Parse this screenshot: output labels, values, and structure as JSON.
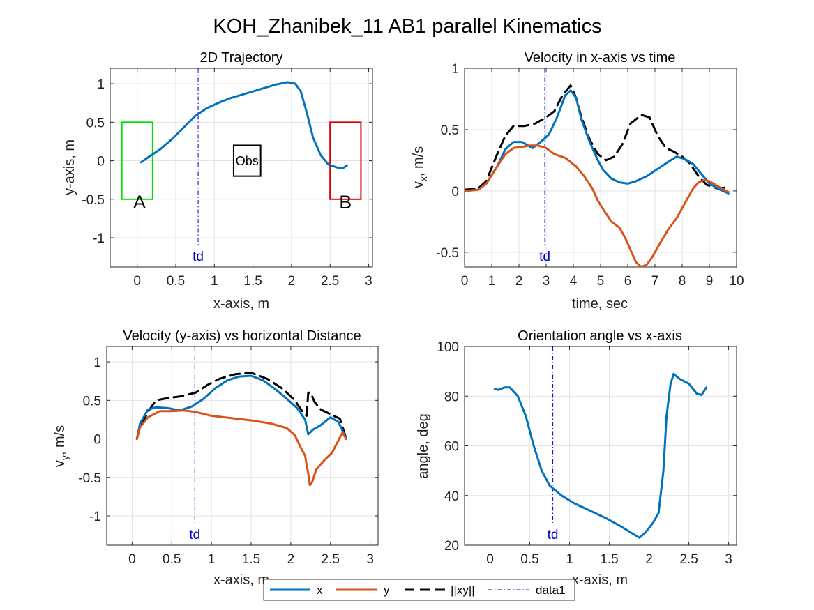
{
  "figure": {
    "title": "KOH_Zhanibek_11    AB1    parallel    Kinematics"
  },
  "colors": {
    "x": "#0072BD",
    "y": "#D95319",
    "xy": "#000000",
    "data1": "#0000CC",
    "box_A": "#00DD00",
    "box_B": "#DD0000"
  },
  "legend": {
    "entries": [
      "x",
      "y",
      "||xy||",
      "data1"
    ],
    "placement": "bottom-center"
  },
  "chart_data": [
    {
      "id": "traj",
      "type": "line",
      "title": "2D Trajectory",
      "xlabel": "x-axis, m",
      "ylabel": "y-axis, m",
      "xlim": [
        -0.35,
        3.05
      ],
      "ylim": [
        -1.38,
        1.2
      ],
      "xticks": [
        0,
        0.5,
        1,
        1.5,
        2,
        2.5,
        3
      ],
      "yticks": [
        -1,
        -0.5,
        0,
        0.5,
        1
      ],
      "grid": true,
      "td_x": 0.79,
      "td_label": "td",
      "annotations": {
        "A": "A",
        "B": "B",
        "Obs": "Obs"
      },
      "boxes": [
        {
          "name": "A",
          "x": [
            -0.2,
            0.2
          ],
          "y": [
            -0.5,
            0.5
          ],
          "color": "box_A"
        },
        {
          "name": "B",
          "x": [
            2.5,
            2.9
          ],
          "y": [
            -0.5,
            0.5
          ],
          "color": "box_B"
        },
        {
          "name": "Obs",
          "x": [
            1.25,
            1.6
          ],
          "y": [
            -0.2,
            0.2
          ],
          "color": "xy"
        }
      ],
      "series": [
        {
          "key": "x",
          "points": [
            [
              0.05,
              -0.02
            ],
            [
              0.15,
              0.05
            ],
            [
              0.3,
              0.15
            ],
            [
              0.45,
              0.28
            ],
            [
              0.6,
              0.43
            ],
            [
              0.75,
              0.58
            ],
            [
              0.9,
              0.68
            ],
            [
              1.05,
              0.75
            ],
            [
              1.2,
              0.81
            ],
            [
              1.4,
              0.87
            ],
            [
              1.6,
              0.93
            ],
            [
              1.8,
              0.99
            ],
            [
              1.95,
              1.02
            ],
            [
              2.05,
              1.0
            ],
            [
              2.12,
              0.9
            ],
            [
              2.2,
              0.62
            ],
            [
              2.28,
              0.3
            ],
            [
              2.38,
              0.07
            ],
            [
              2.48,
              -0.05
            ],
            [
              2.6,
              -0.09
            ],
            [
              2.66,
              -0.1
            ],
            [
              2.72,
              -0.06
            ]
          ]
        }
      ]
    },
    {
      "id": "vx",
      "type": "line",
      "title": "Velocity in x-axis vs time",
      "xlabel": "time, sec",
      "ylabel": "v",
      "ylabel_sub": "x",
      "ylabel_suffix": ", m/s",
      "xlim": [
        0,
        10
      ],
      "ylim": [
        -0.62,
        1.0
      ],
      "xticks": [
        0,
        1,
        2,
        3,
        4,
        5,
        6,
        7,
        8,
        9,
        10
      ],
      "yticks": [
        -0.5,
        0,
        0.5,
        1
      ],
      "grid": true,
      "td_x": 2.95,
      "td_label": "td",
      "series": [
        {
          "key": "xy",
          "points": [
            [
              0,
              0.01
            ],
            [
              0.5,
              0.02
            ],
            [
              0.8,
              0.08
            ],
            [
              1.2,
              0.3
            ],
            [
              1.5,
              0.45
            ],
            [
              1.8,
              0.53
            ],
            [
              2.2,
              0.53
            ],
            [
              2.6,
              0.55
            ],
            [
              3.0,
              0.6
            ],
            [
              3.3,
              0.65
            ],
            [
              3.6,
              0.78
            ],
            [
              3.9,
              0.86
            ],
            [
              4.1,
              0.76
            ],
            [
              4.3,
              0.6
            ],
            [
              4.6,
              0.42
            ],
            [
              4.9,
              0.3
            ],
            [
              5.2,
              0.25
            ],
            [
              5.5,
              0.28
            ],
            [
              5.8,
              0.38
            ],
            [
              6.1,
              0.55
            ],
            [
              6.5,
              0.62
            ],
            [
              6.8,
              0.6
            ],
            [
              7.1,
              0.45
            ],
            [
              7.4,
              0.35
            ],
            [
              7.7,
              0.32
            ],
            [
              8.0,
              0.28
            ],
            [
              8.3,
              0.22
            ],
            [
              8.6,
              0.12
            ],
            [
              8.9,
              0.05
            ],
            [
              9.3,
              0.02
            ],
            [
              9.7,
              0.03
            ]
          ]
        },
        {
          "key": "x",
          "points": [
            [
              0,
              0.0
            ],
            [
              0.5,
              0.01
            ],
            [
              0.8,
              0.06
            ],
            [
              1.2,
              0.2
            ],
            [
              1.5,
              0.34
            ],
            [
              1.8,
              0.4
            ],
            [
              2.1,
              0.4
            ],
            [
              2.5,
              0.35
            ],
            [
              2.8,
              0.4
            ],
            [
              3.1,
              0.46
            ],
            [
              3.4,
              0.6
            ],
            [
              3.7,
              0.78
            ],
            [
              3.9,
              0.82
            ],
            [
              4.1,
              0.76
            ],
            [
              4.3,
              0.58
            ],
            [
              4.6,
              0.4
            ],
            [
              4.9,
              0.25
            ],
            [
              5.1,
              0.17
            ],
            [
              5.4,
              0.1
            ],
            [
              5.7,
              0.07
            ],
            [
              6.0,
              0.06
            ],
            [
              6.3,
              0.08
            ],
            [
              6.7,
              0.12
            ],
            [
              7.1,
              0.18
            ],
            [
              7.5,
              0.24
            ],
            [
              7.8,
              0.28
            ],
            [
              8.1,
              0.26
            ],
            [
              8.4,
              0.22
            ],
            [
              8.7,
              0.14
            ],
            [
              9.0,
              0.06
            ],
            [
              9.4,
              0.01
            ],
            [
              9.7,
              -0.02
            ]
          ]
        },
        {
          "key": "y",
          "points": [
            [
              0,
              0.0
            ],
            [
              0.5,
              0.01
            ],
            [
              0.8,
              0.06
            ],
            [
              1.2,
              0.2
            ],
            [
              1.5,
              0.3
            ],
            [
              1.8,
              0.35
            ],
            [
              2.1,
              0.36
            ],
            [
              2.4,
              0.37
            ],
            [
              2.7,
              0.37
            ],
            [
              3.0,
              0.35
            ],
            [
              3.3,
              0.3
            ],
            [
              3.7,
              0.27
            ],
            [
              4.1,
              0.2
            ],
            [
              4.4,
              0.12
            ],
            [
              4.7,
              0.02
            ],
            [
              4.9,
              -0.08
            ],
            [
              5.1,
              -0.15
            ],
            [
              5.4,
              -0.25
            ],
            [
              5.7,
              -0.3
            ],
            [
              5.9,
              -0.38
            ],
            [
              6.1,
              -0.48
            ],
            [
              6.3,
              -0.58
            ],
            [
              6.5,
              -0.62
            ],
            [
              6.7,
              -0.6
            ],
            [
              6.9,
              -0.54
            ],
            [
              7.2,
              -0.42
            ],
            [
              7.5,
              -0.31
            ],
            [
              7.8,
              -0.22
            ],
            [
              8.1,
              -0.1
            ],
            [
              8.4,
              0.02
            ],
            [
              8.6,
              0.07
            ],
            [
              8.8,
              0.09
            ],
            [
              9.0,
              0.08
            ],
            [
              9.3,
              0.04
            ],
            [
              9.7,
              -0.01
            ]
          ]
        }
      ]
    },
    {
      "id": "vy",
      "type": "line",
      "title": "Velocity (y-axis) vs horizontal Distance",
      "xlabel": "x-axis, m",
      "ylabel": "v",
      "ylabel_sub": "y",
      "ylabel_suffix": ", m/s",
      "xlim": [
        -0.32,
        3.1
      ],
      "ylim": [
        -1.38,
        1.2
      ],
      "xticks": [
        0,
        0.5,
        1,
        1.5,
        2,
        2.5,
        3
      ],
      "yticks": [
        -1,
        -0.5,
        0,
        0.5,
        1
      ],
      "grid": true,
      "td_x": 0.79,
      "td_label": "td",
      "series": [
        {
          "key": "xy",
          "points": [
            [
              0.06,
              0.0
            ],
            [
              0.1,
              0.15
            ],
            [
              0.2,
              0.35
            ],
            [
              0.3,
              0.5
            ],
            [
              0.45,
              0.53
            ],
            [
              0.6,
              0.55
            ],
            [
              0.8,
              0.6
            ],
            [
              0.95,
              0.7
            ],
            [
              1.1,
              0.78
            ],
            [
              1.3,
              0.84
            ],
            [
              1.5,
              0.86
            ],
            [
              1.7,
              0.78
            ],
            [
              1.9,
              0.65
            ],
            [
              2.05,
              0.5
            ],
            [
              2.15,
              0.35
            ],
            [
              2.2,
              0.3
            ],
            [
              2.22,
              0.6
            ],
            [
              2.25,
              0.6
            ],
            [
              2.3,
              0.48
            ],
            [
              2.38,
              0.38
            ],
            [
              2.5,
              0.32
            ],
            [
              2.62,
              0.26
            ],
            [
              2.7,
              0.0
            ]
          ]
        },
        {
          "key": "x",
          "points": [
            [
              0.06,
              0.0
            ],
            [
              0.1,
              0.2
            ],
            [
              0.2,
              0.38
            ],
            [
              0.3,
              0.41
            ],
            [
              0.45,
              0.4
            ],
            [
              0.6,
              0.37
            ],
            [
              0.75,
              0.42
            ],
            [
              0.9,
              0.52
            ],
            [
              1.05,
              0.66
            ],
            [
              1.2,
              0.76
            ],
            [
              1.35,
              0.81
            ],
            [
              1.5,
              0.82
            ],
            [
              1.65,
              0.76
            ],
            [
              1.8,
              0.65
            ],
            [
              1.95,
              0.52
            ],
            [
              2.08,
              0.4
            ],
            [
              2.18,
              0.25
            ],
            [
              2.22,
              0.06
            ],
            [
              2.28,
              0.12
            ],
            [
              2.38,
              0.18
            ],
            [
              2.5,
              0.28
            ],
            [
              2.6,
              0.22
            ],
            [
              2.7,
              0.0
            ]
          ]
        },
        {
          "key": "y",
          "points": [
            [
              0.06,
              0.0
            ],
            [
              0.1,
              0.15
            ],
            [
              0.2,
              0.28
            ],
            [
              0.35,
              0.36
            ],
            [
              0.5,
              0.36
            ],
            [
              0.65,
              0.37
            ],
            [
              0.8,
              0.35
            ],
            [
              1.0,
              0.3
            ],
            [
              1.25,
              0.27
            ],
            [
              1.5,
              0.24
            ],
            [
              1.75,
              0.2
            ],
            [
              1.95,
              0.14
            ],
            [
              2.05,
              0.05
            ],
            [
              2.12,
              -0.1
            ],
            [
              2.18,
              -0.22
            ],
            [
              2.22,
              -0.45
            ],
            [
              2.24,
              -0.6
            ],
            [
              2.27,
              -0.56
            ],
            [
              2.32,
              -0.4
            ],
            [
              2.42,
              -0.28
            ],
            [
              2.52,
              -0.18
            ],
            [
              2.6,
              -0.02
            ],
            [
              2.65,
              0.08
            ],
            [
              2.7,
              0.0
            ]
          ]
        }
      ]
    },
    {
      "id": "angle",
      "type": "line",
      "title": "Orientation angle vs x-axis",
      "xlabel": "x-axis, m",
      "ylabel": "angle, deg",
      "xlim": [
        -0.32,
        3.1
      ],
      "ylim": [
        20,
        100
      ],
      "xticks": [
        0,
        0.5,
        1,
        1.5,
        2,
        2.5,
        3
      ],
      "yticks": [
        20,
        40,
        60,
        80,
        100
      ],
      "grid": true,
      "td_x": 0.79,
      "td_label": "td",
      "series": [
        {
          "key": "x",
          "points": [
            [
              0.06,
              83
            ],
            [
              0.1,
              82.5
            ],
            [
              0.18,
              83.5
            ],
            [
              0.25,
              83.5
            ],
            [
              0.35,
              80
            ],
            [
              0.45,
              72
            ],
            [
              0.55,
              60
            ],
            [
              0.65,
              50
            ],
            [
              0.75,
              44
            ],
            [
              0.9,
              40
            ],
            [
              1.05,
              37
            ],
            [
              1.25,
              34
            ],
            [
              1.45,
              31
            ],
            [
              1.65,
              27.5
            ],
            [
              1.8,
              24.5
            ],
            [
              1.88,
              23
            ],
            [
              1.95,
              25
            ],
            [
              2.05,
              29
            ],
            [
              2.12,
              33
            ],
            [
              2.18,
              50
            ],
            [
              2.22,
              72
            ],
            [
              2.27,
              85
            ],
            [
              2.31,
              89
            ],
            [
              2.38,
              87
            ],
            [
              2.5,
              85
            ],
            [
              2.6,
              81
            ],
            [
              2.66,
              80.5
            ],
            [
              2.72,
              83.5
            ]
          ]
        }
      ]
    }
  ]
}
